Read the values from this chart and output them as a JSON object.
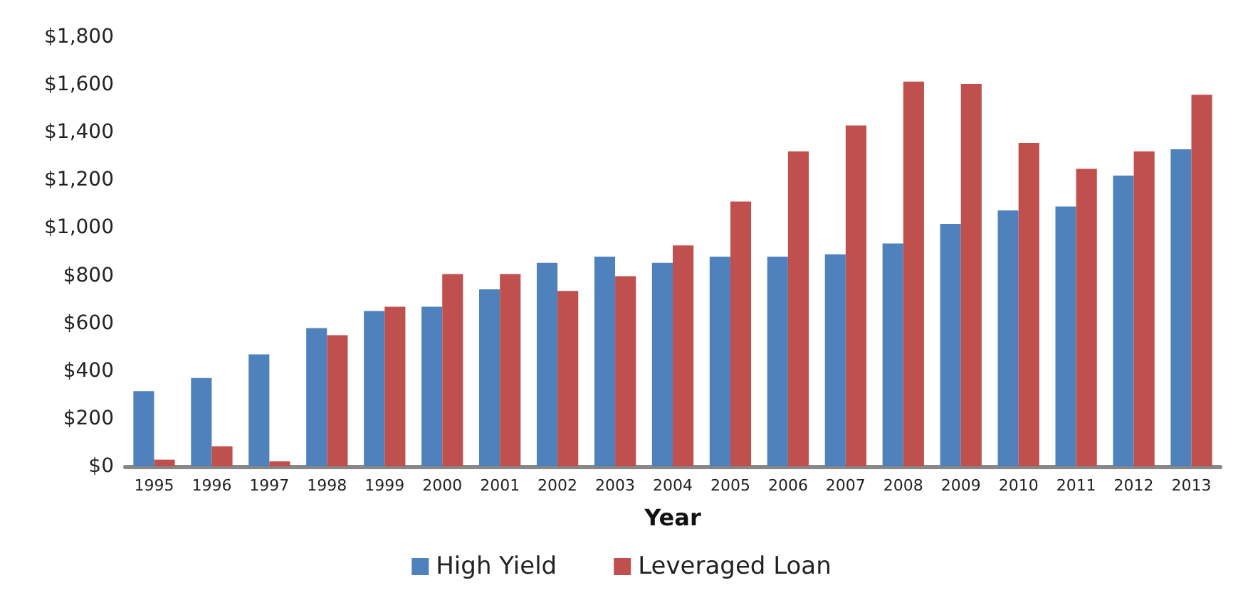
{
  "chart_data": {
    "type": "bar",
    "xlabel": "Year",
    "categories": [
      "1995",
      "1996",
      "1997",
      "1998",
      "1999",
      "2000",
      "2001",
      "2002",
      "2003",
      "2004",
      "2005",
      "2006",
      "2007",
      "2008",
      "2009",
      "2010",
      "2011",
      "2012",
      "2013"
    ],
    "series": [
      {
        "name": "High Yield",
        "color": "#4f81bd",
        "values": [
          315,
          370,
          469,
          580,
          651,
          669,
          742,
          853,
          879,
          853,
          879,
          879,
          889,
          934,
          1016,
          1073,
          1089,
          1219,
          1329
        ]
      },
      {
        "name": "Leveraged Loan",
        "color": "#c0504d",
        "values": [
          28,
          84,
          21,
          550,
          669,
          806,
          806,
          735,
          797,
          926,
          1110,
          1320,
          1429,
          1613,
          1603,
          1356,
          1247,
          1320,
          1558
        ]
      }
    ],
    "ylim": [
      0,
      1800
    ],
    "yticks": [
      {
        "value": 0,
        "label": "$0"
      },
      {
        "value": 200,
        "label": "$200"
      },
      {
        "value": 400,
        "label": "$400"
      },
      {
        "value": 600,
        "label": "$600"
      },
      {
        "value": 800,
        "label": "$800"
      },
      {
        "value": 1000,
        "label": "$1,000"
      },
      {
        "value": 1200,
        "label": "$1,200"
      },
      {
        "value": 1400,
        "label": "$1,400"
      },
      {
        "value": 1600,
        "label": "$1,600"
      },
      {
        "value": 1800,
        "label": "$1,800"
      }
    ],
    "grid": false,
    "legend": "bottom"
  }
}
